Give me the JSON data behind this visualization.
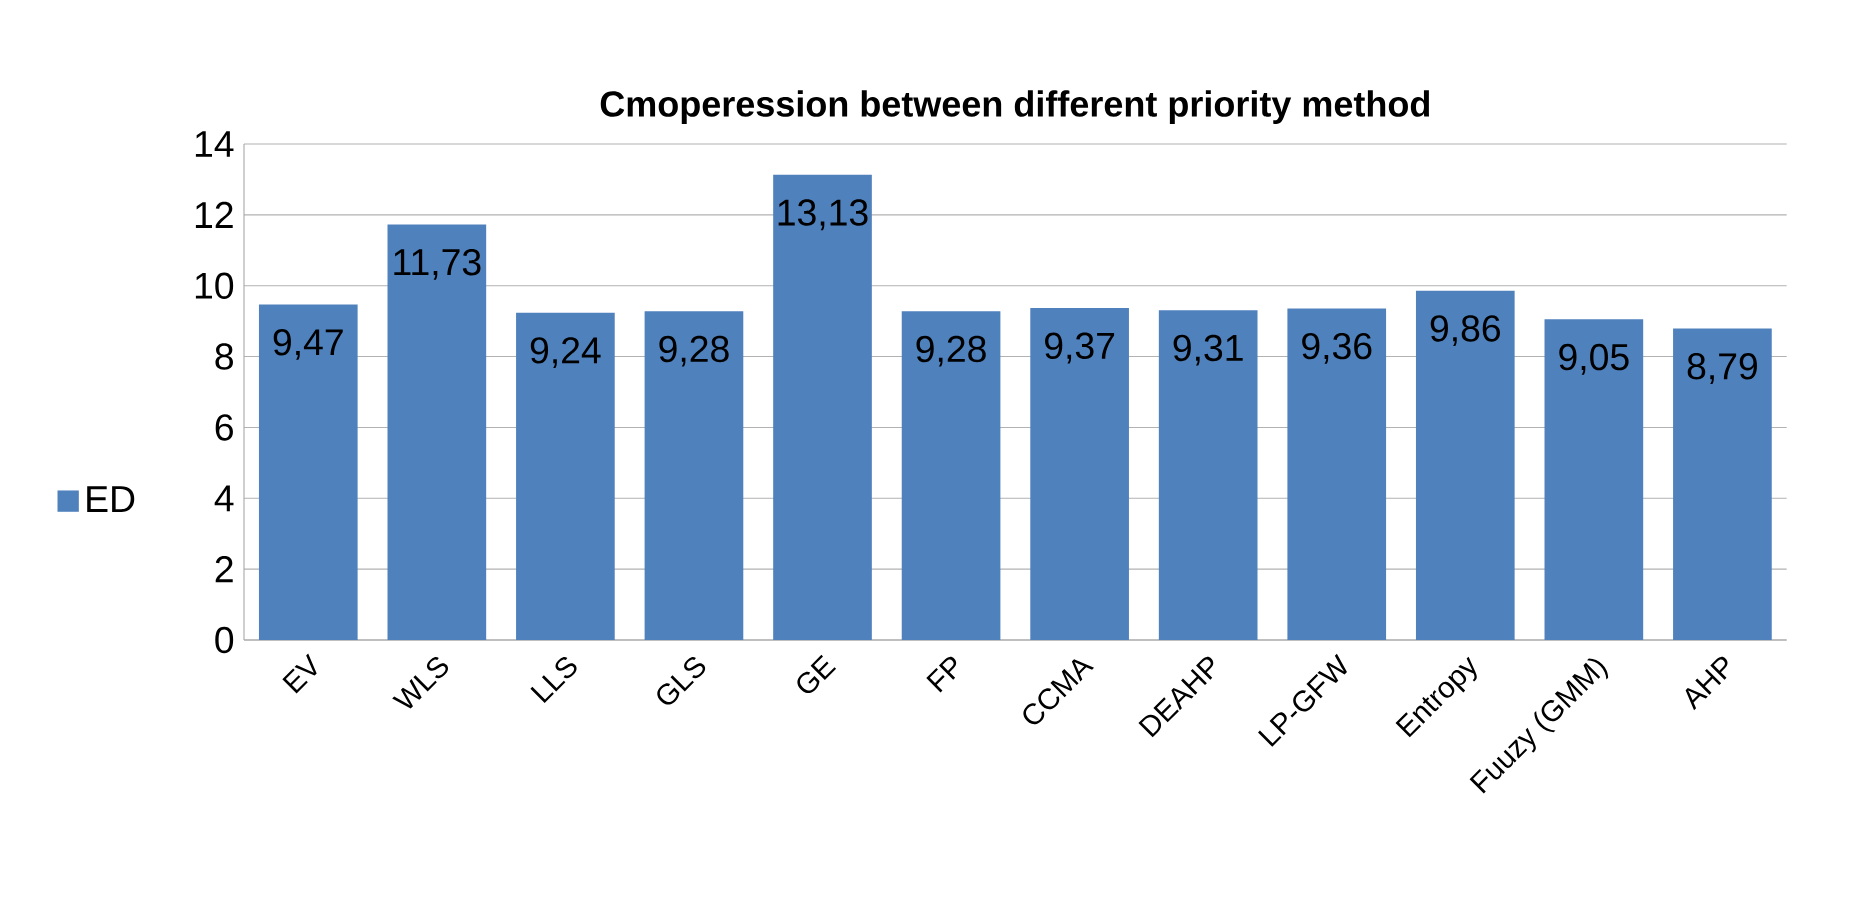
{
  "chart_data": {
    "type": "bar",
    "title": "Cmoperession between different priority method",
    "categories": [
      "EV",
      "WLS",
      "LLS",
      "GLS",
      "GE",
      "FP",
      "CCMA",
      "DEAHP",
      "LP-GFW",
      "Entropy",
      "Fuuzy (GMM)",
      "AHP"
    ],
    "series": [
      {
        "name": "ED",
        "color": "#4f81bd",
        "values": [
          9.47,
          11.73,
          9.24,
          9.28,
          13.13,
          9.28,
          9.37,
          9.31,
          9.36,
          9.86,
          9.05,
          8.79
        ],
        "value_labels": [
          "9,47",
          "11,73",
          "9,24",
          "9,28",
          "13,13",
          "9,28",
          "9,37",
          "9,31",
          "9,36",
          "9,86",
          "9,05",
          "8,79"
        ]
      }
    ],
    "ylim": [
      0,
      14
    ],
    "yticks": [
      0,
      2,
      4,
      6,
      8,
      10,
      12,
      14
    ],
    "grid": "y",
    "legend": "left"
  }
}
